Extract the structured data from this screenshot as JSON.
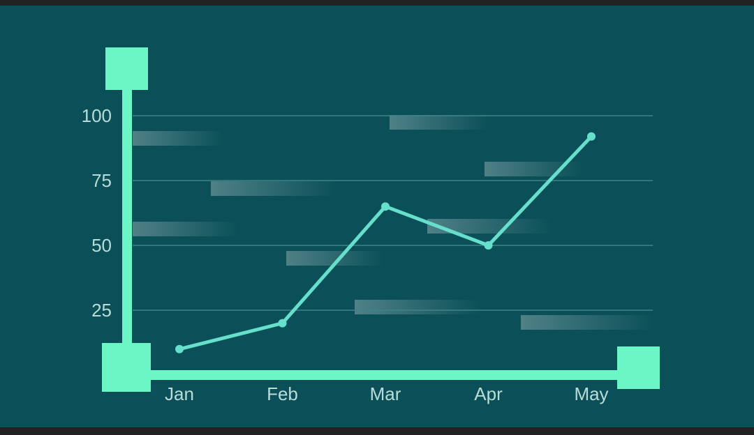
{
  "chart_data": {
    "type": "line",
    "title": "",
    "xlabel": "",
    "ylabel": "",
    "categories": [
      "Jan",
      "Feb",
      "Mar",
      "Apr",
      "May"
    ],
    "series": [
      {
        "values": [
          10,
          20,
          65,
          50,
          92
        ]
      }
    ],
    "yticks": [
      25,
      50,
      75,
      100
    ],
    "ylim": [
      0,
      100
    ],
    "grid": true,
    "legend": "none"
  },
  "colors": {
    "background": "#0b5058",
    "axis": "#6cf6c6",
    "line": "#66dfcd",
    "text": "#b8dcd8",
    "grid": "#3f8487"
  }
}
